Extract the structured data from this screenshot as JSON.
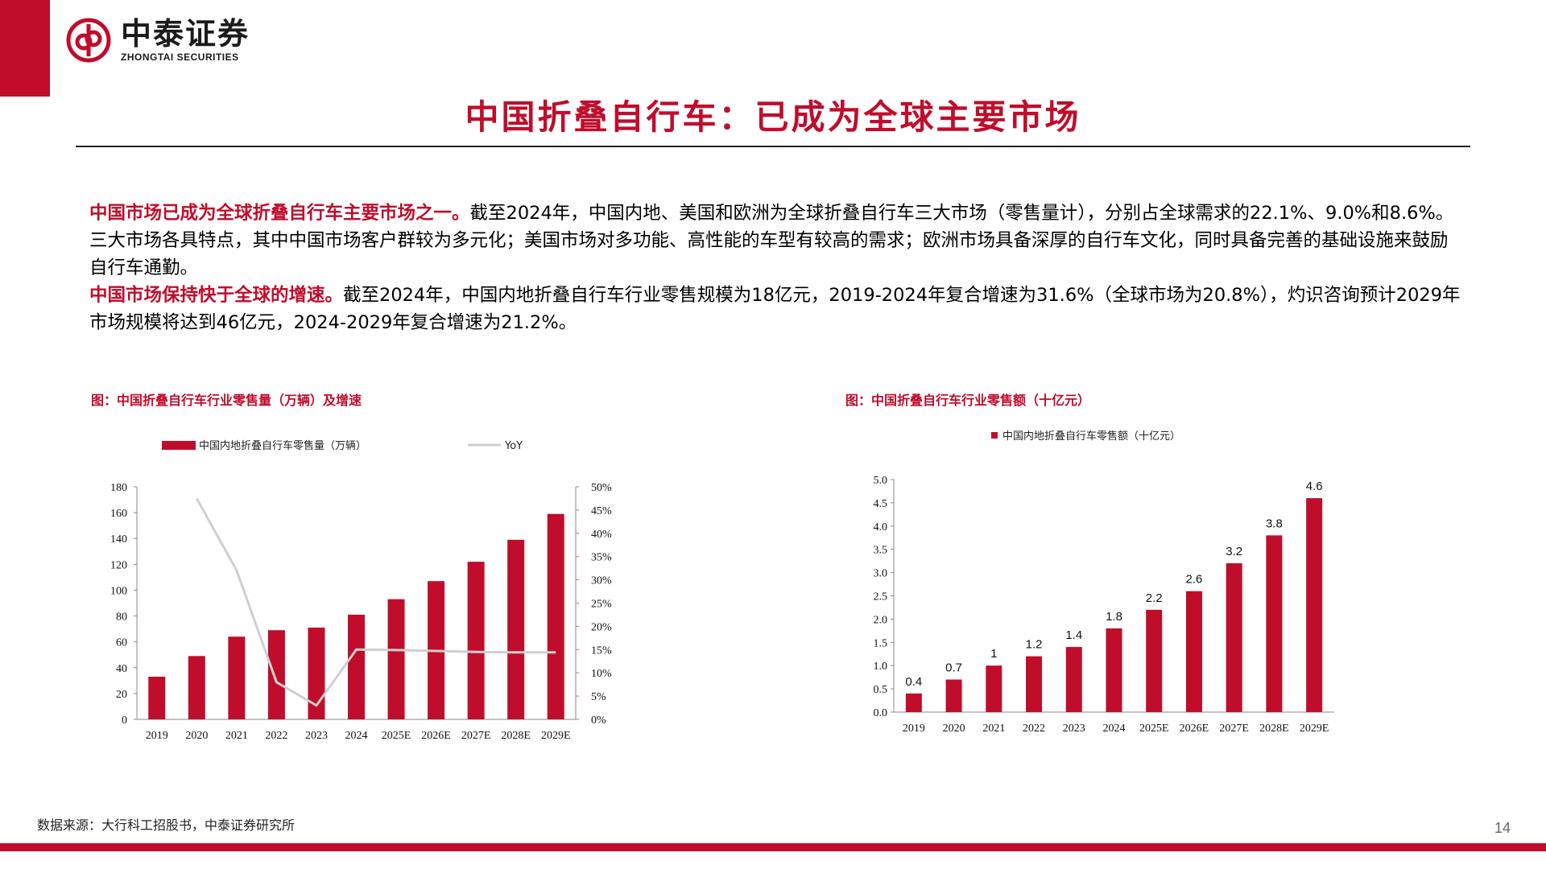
{
  "brand": {
    "name_cn": "中泰证券",
    "name_en": "ZHONGTAI SECURITIES",
    "color": "#c00d2b"
  },
  "page_title": "中国折叠自行车：已成为全球主要市场",
  "intro": {
    "p1_highlight": "中国市场已成为全球折叠自行车主要市场之一。",
    "p1_text": "截至2024年，中国内地、美国和欧洲为全球折叠自行车三大市场（零售量计），分别占全球需求的22.1%、9.0%和8.6%。三大市场各具特点，其中中国市场客户群较为多元化；美国市场对多功能、高性能的车型有较高的需求；欧洲市场具备深厚的自行车文化，同时具备完善的基础设施来鼓励自行车通勤。",
    "p2_highlight": "中国市场保持快于全球的增速。",
    "p2_text": "截至2024年，中国内地折叠自行车行业零售规模为18亿元，2019-2024年复合增速为31.6%（全球市场为20.8%），灼识咨询预计2029年市场规模将达到46亿元，2024-2029年复合增速为21.2%。"
  },
  "chart_data": [
    {
      "type": "bar",
      "title": "图：中国折叠自行车行业零售量（万辆）及增速",
      "categories": [
        "2019",
        "2020",
        "2021",
        "2022",
        "2023",
        "2024",
        "2025E",
        "2026E",
        "2027E",
        "2028E",
        "2029E"
      ],
      "series": [
        {
          "name": "中国内地折叠自行车零售量（万辆）",
          "type": "bar",
          "axis": "left",
          "color": "#c00d2b",
          "values": [
            33,
            49,
            64,
            69,
            71,
            81,
            93,
            107,
            122,
            139,
            159
          ]
        },
        {
          "name": "YoY",
          "type": "line",
          "axis": "right",
          "color": "#cfcfcf",
          "values": [
            null,
            0.475,
            0.32,
            0.08,
            0.03,
            0.15,
            0.149,
            0.147,
            0.145,
            0.144,
            0.144
          ]
        }
      ],
      "y_left": {
        "min": 0,
        "max": 180,
        "step": 20
      },
      "y_right": {
        "min": 0,
        "max": 0.5,
        "step": 0.05,
        "format": "percent"
      },
      "legend_position": "top-left",
      "grid": false
    },
    {
      "type": "bar",
      "title": "图：中国折叠自行车行业零售额（十亿元）",
      "categories": [
        "2019",
        "2020",
        "2021",
        "2022",
        "2023",
        "2024",
        "2025E",
        "2026E",
        "2027E",
        "2028E",
        "2029E"
      ],
      "series": [
        {
          "name": "中国内地折叠自行车零售额（十亿元）",
          "color": "#c00d2b",
          "values": [
            0.4,
            0.7,
            1.0,
            1.2,
            1.4,
            1.8,
            2.2,
            2.6,
            3.2,
            3.8,
            4.6
          ],
          "data_labels": [
            "0.4",
            "0.7",
            "1",
            "1.2",
            "1.4",
            "1.8",
            "2.2",
            "2.6",
            "3.2",
            "3.8",
            "4.6"
          ]
        }
      ],
      "y_left": {
        "min": 0,
        "max": 5,
        "step": 0.5,
        "decimals": 1
      },
      "legend_position": "top-center",
      "grid": false
    }
  ],
  "source": "数据来源：大行科工招股书，中泰证券研究所",
  "page_number": "14"
}
